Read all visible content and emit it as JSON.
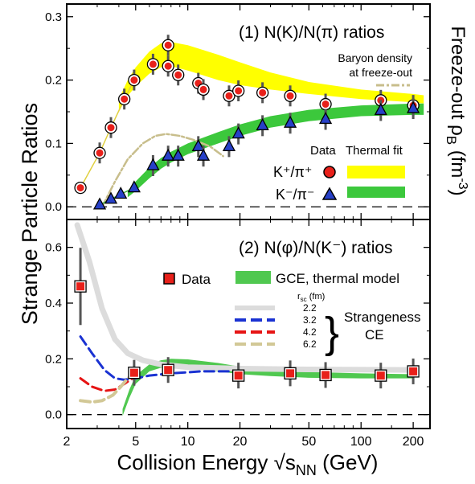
{
  "figure": {
    "ylabel": "Strange Particle Ratios",
    "xlabel": "Collision Energy √s",
    "xlabel_sub": "NN",
    "xlabel_unit": " (GeV)",
    "right_label": "Freeze-out ρ",
    "right_label_sub": "B",
    "right_label_unit": " (fm",
    "right_label_sup": "-3",
    "right_label_close": ")"
  },
  "chart_data": [
    {
      "type": "scatter",
      "panel_title": "(1) N(K)/N(π) ratios",
      "xscale": "log",
      "xlim": [
        2,
        250
      ],
      "ylim": [
        -0.02,
        0.32
      ],
      "yticks": [
        "0.0",
        "0.1",
        "0.2",
        "0.3"
      ],
      "xticks": [
        "2",
        "5",
        "10",
        "20",
        "50",
        "100",
        "200"
      ],
      "legend": {
        "data_header": "Data",
        "fit_header": "Thermal fit",
        "kplus_label": "K⁺/π⁺",
        "kminus_label": "K⁻/π⁻"
      },
      "baryon_label_1": "Baryon density",
      "baryon_label_2": "at freeze-out",
      "colors": {
        "kplus_marker": "#e8201a",
        "kminus_marker": "#2740c8",
        "kplus_band": "#ffff00",
        "kminus_band": "#3cc83c",
        "baryon_curve": "#c8be8c"
      },
      "series": [
        {
          "name": "K⁺/π⁺",
          "x": [
            2.4,
            3.1,
            3.6,
            4.3,
            4.9,
            6.3,
            7.7,
            7.7,
            8.8,
            11.5,
            12.3,
            17.3,
            19.6,
            27,
            39,
            62.4,
            130,
            200
          ],
          "y": [
            0.03,
            0.085,
            0.125,
            0.17,
            0.2,
            0.225,
            0.222,
            0.255,
            0.208,
            0.195,
            0.185,
            0.175,
            0.183,
            0.18,
            0.175,
            0.162,
            0.168,
            0.16
          ]
        },
        {
          "name": "K⁻/π⁻",
          "x": [
            3.1,
            3.6,
            4.1,
            4.9,
            6.3,
            7.7,
            8.8,
            11.5,
            12.3,
            17.3,
            19.6,
            27,
            39,
            62.4,
            130,
            200
          ],
          "y": [
            0.003,
            0.012,
            0.02,
            0.03,
            0.065,
            0.08,
            0.08,
            0.095,
            0.08,
            0.095,
            0.115,
            0.128,
            0.132,
            0.138,
            0.152,
            0.155
          ]
        },
        {
          "name": "K⁺/π⁺ thermal fit",
          "x": [
            4.0,
            4.5,
            5,
            6,
            7,
            8,
            10,
            15,
            20,
            30,
            50,
            100,
            200,
            230
          ],
          "y_low": [
            0.15,
            0.175,
            0.19,
            0.21,
            0.22,
            0.222,
            0.215,
            0.2,
            0.192,
            0.185,
            0.178,
            0.17,
            0.165,
            0.163
          ],
          "y_high": [
            0.17,
            0.2,
            0.22,
            0.245,
            0.258,
            0.26,
            0.255,
            0.24,
            0.228,
            0.212,
            0.197,
            0.185,
            0.178,
            0.176
          ]
        },
        {
          "name": "K⁻/π⁻ thermal fit",
          "x": [
            4.5,
            5,
            6,
            7,
            8,
            10,
            15,
            20,
            30,
            50,
            100,
            200,
            230
          ],
          "y_low": [
            0.015,
            0.025,
            0.045,
            0.06,
            0.07,
            0.083,
            0.1,
            0.112,
            0.125,
            0.135,
            0.143,
            0.145,
            0.145
          ],
          "y_high": [
            0.025,
            0.04,
            0.062,
            0.077,
            0.087,
            0.1,
            0.118,
            0.13,
            0.143,
            0.153,
            0.16,
            0.163,
            0.163
          ]
        },
        {
          "name": "Baryon density at freeze-out",
          "x": [
            3.2,
            3.8,
            4.5,
            5.5,
            6.5,
            7.5,
            9,
            11,
            13.5,
            16
          ],
          "y": [
            0.0,
            0.04,
            0.075,
            0.1,
            0.112,
            0.115,
            0.112,
            0.105,
            0.095,
            0.08
          ]
        }
      ]
    },
    {
      "type": "scatter",
      "panel_title": "(2) N(φ)/N(K⁻) ratios",
      "xscale": "log",
      "xlim": [
        2,
        250
      ],
      "ylim": [
        -0.05,
        0.7
      ],
      "yticks": [
        "0.0",
        "0.2",
        "0.4",
        "0.6"
      ],
      "xticks": [
        "2",
        "5",
        "10",
        "20",
        "50",
        "100",
        "200"
      ],
      "legend": {
        "data_label": "Data",
        "gce_label": "GCE, thermal model",
        "rsc_header": "r",
        "rsc_header_sub": "sc",
        "rsc_header_unit": " (fm)",
        "rsc_values": [
          "2.2",
          "3.2",
          "4.2",
          "6.2"
        ],
        "brace_label_1": "Strangeness",
        "brace_label_2": "CE"
      },
      "colors": {
        "data_marker": "#e8201a",
        "gce_band": "#50c850",
        "ce_2_2": "#dcdcdc",
        "ce_3_2": "#1a32d2",
        "ce_4_2": "#e61414",
        "ce_6_2": "#d2c896"
      },
      "series": [
        {
          "name": "Data",
          "x": [
            2.4,
            4.9,
            7.7,
            19.6,
            39,
            62.4,
            130,
            200
          ],
          "y": [
            0.46,
            0.15,
            0.16,
            0.14,
            0.148,
            0.142,
            0.14,
            0.155
          ]
        },
        {
          "name": "GCE, thermal model",
          "x": [
            4.2,
            4.6,
            5,
            6,
            7,
            8,
            10,
            15,
            20,
            30,
            50,
            100,
            200
          ],
          "y_low": [
            -0.005,
            0.06,
            0.11,
            0.155,
            0.168,
            0.17,
            0.168,
            0.155,
            0.145,
            0.138,
            0.132,
            0.13,
            0.13
          ],
          "y_high": [
            0.02,
            0.09,
            0.14,
            0.18,
            0.195,
            0.2,
            0.198,
            0.185,
            0.172,
            0.162,
            0.153,
            0.148,
            0.145
          ]
        },
        {
          "name": "2.2",
          "x": [
            2.3,
            2.7,
            3.2,
            3.8,
            4.5,
            5.5,
            7,
            10,
            20,
            50,
            200
          ],
          "y": [
            0.68,
            0.55,
            0.38,
            0.27,
            0.22,
            0.195,
            0.18,
            0.17,
            0.165,
            0.162,
            0.16
          ]
        },
        {
          "name": "3.2",
          "x": [
            2.4,
            2.8,
            3.3,
            3.8,
            4.3,
            5,
            6,
            8,
            12,
            20
          ],
          "y": [
            0.28,
            0.22,
            0.16,
            0.13,
            0.125,
            0.13,
            0.14,
            0.148,
            0.155,
            0.155
          ]
        },
        {
          "name": "4.2",
          "x": [
            2.4,
            2.8,
            3.3,
            3.8,
            4.3,
            4.8
          ],
          "y": [
            0.13,
            0.1,
            0.085,
            0.09,
            0.11,
            0.13
          ]
        },
        {
          "name": "6.2",
          "x": [
            2.4,
            2.8,
            3.2,
            3.7,
            4.1,
            4.5,
            5
          ],
          "y": [
            0.05,
            0.045,
            0.05,
            0.07,
            0.1,
            0.13,
            0.15
          ]
        }
      ]
    }
  ]
}
